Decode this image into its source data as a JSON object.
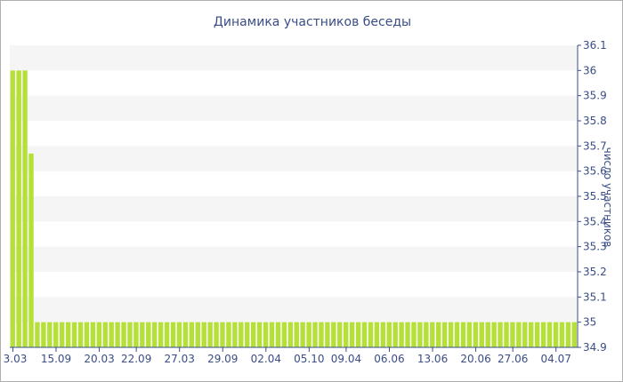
{
  "chart_data": {
    "type": "bar",
    "title": "Динамика участников беседы",
    "xlabel": "",
    "ylabel": "число участников",
    "ylim": [
      34.9,
      36.1
    ],
    "yticks": [
      34.9,
      35,
      35.1,
      35.2,
      35.3,
      35.4,
      35.5,
      35.6,
      35.7,
      35.8,
      35.9,
      36,
      36.1
    ],
    "y_axis_side": "right",
    "grid": "alternating horizontal bands",
    "xtick_labels": [
      "3.03",
      "15.09",
      "20.03",
      "22.09",
      "27.03",
      "29.09",
      "02.04",
      "05.10",
      "09.04",
      "06.06",
      "13.06",
      "20.06",
      "27.06",
      "04.07"
    ],
    "bar_count": 92,
    "values": [
      36,
      36,
      36,
      35.67,
      35,
      35,
      35,
      35,
      35,
      35,
      35,
      35,
      35,
      35,
      35,
      35,
      35,
      35,
      35,
      35,
      35,
      35,
      35,
      35,
      35,
      35,
      35,
      35,
      35,
      35,
      35,
      35,
      35,
      35,
      35,
      35,
      35,
      35,
      35,
      35,
      35,
      35,
      35,
      35,
      35,
      35,
      35,
      35,
      35,
      35,
      35,
      35,
      35,
      35,
      35,
      35,
      35,
      35,
      35,
      35,
      35,
      35,
      35,
      35,
      35,
      35,
      35,
      35,
      35,
      35,
      35,
      35,
      35,
      35,
      35,
      35,
      35,
      35,
      35,
      35,
      35,
      35,
      35,
      35,
      35,
      35,
      35,
      35,
      35,
      35,
      35,
      35
    ],
    "colors": {
      "bar": "#b5e03a",
      "band": "#f5f5f5",
      "text": "#3a4d86",
      "axis": "#3a4d86"
    }
  }
}
